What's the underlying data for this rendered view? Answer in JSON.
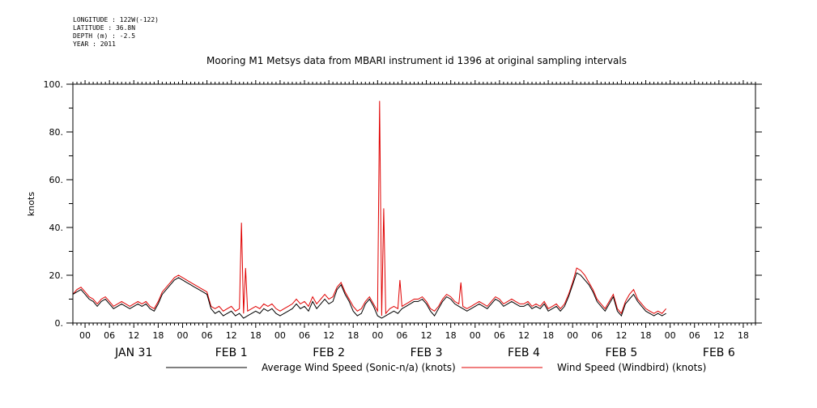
{
  "meta": {
    "longitude": "LONGITUDE : 122W(-122)",
    "latitude": "LATITUDE : 36.8N",
    "depth": "DEPTH (m) : -2.5",
    "year": "YEAR : 2011"
  },
  "chart_data": {
    "type": "line",
    "title": "Mooring M1 Metsys data from MBARI instrument id 1396 at original sampling intervals",
    "ylabel": "knots",
    "xlabel": "",
    "ylim": [
      0,
      100
    ],
    "y_ticks": [
      "0.",
      "20.",
      "40.",
      "60.",
      "80.",
      "100."
    ],
    "hour_labels": [
      "00",
      "06",
      "12",
      "18",
      "00",
      "06",
      "12",
      "18",
      "00",
      "06",
      "12",
      "18",
      "00",
      "06",
      "12",
      "18",
      "00",
      "06",
      "12",
      "18",
      "00",
      "06",
      "12",
      "18",
      "00",
      "06",
      "12",
      "18"
    ],
    "day_labels": [
      "JAN 31",
      "FEB  1",
      "FEB  2",
      "FEB  3",
      "FEB  4",
      "FEB  5",
      "FEB  6"
    ],
    "x_unit": "hours since 2011-01-30 21:00",
    "x_range": [
      0,
      168
    ],
    "series": [
      {
        "name": "Average Wind Speed (Sonic-n/a) (knots)",
        "color": "#000000",
        "points": [
          [
            0,
            12
          ],
          [
            1,
            13
          ],
          [
            2,
            14
          ],
          [
            3,
            12
          ],
          [
            4,
            10
          ],
          [
            5,
            9
          ],
          [
            6,
            7
          ],
          [
            7,
            9
          ],
          [
            8,
            10
          ],
          [
            9,
            8
          ],
          [
            10,
            6
          ],
          [
            11,
            7
          ],
          [
            12,
            8
          ],
          [
            13,
            7
          ],
          [
            14,
            6
          ],
          [
            15,
            7
          ],
          [
            16,
            8
          ],
          [
            17,
            7
          ],
          [
            18,
            8
          ],
          [
            19,
            6
          ],
          [
            20,
            5
          ],
          [
            21,
            8
          ],
          [
            22,
            12
          ],
          [
            23,
            14
          ],
          [
            24,
            16
          ],
          [
            25,
            18
          ],
          [
            26,
            19
          ],
          [
            27,
            18
          ],
          [
            28,
            17
          ],
          [
            29,
            16
          ],
          [
            30,
            15
          ],
          [
            31,
            14
          ],
          [
            32,
            13
          ],
          [
            33,
            12
          ],
          [
            34,
            6
          ],
          [
            35,
            4
          ],
          [
            36,
            5
          ],
          [
            37,
            3
          ],
          [
            38,
            4
          ],
          [
            39,
            5
          ],
          [
            40,
            3
          ],
          [
            41,
            4
          ],
          [
            42,
            2
          ],
          [
            43,
            3
          ],
          [
            44,
            4
          ],
          [
            45,
            5
          ],
          [
            46,
            4
          ],
          [
            47,
            6
          ],
          [
            48,
            5
          ],
          [
            49,
            6
          ],
          [
            50,
            4
          ],
          [
            51,
            3
          ],
          [
            52,
            4
          ],
          [
            53,
            5
          ],
          [
            54,
            6
          ],
          [
            55,
            8
          ],
          [
            56,
            6
          ],
          [
            57,
            7
          ],
          [
            58,
            5
          ],
          [
            59,
            9
          ],
          [
            60,
            6
          ],
          [
            61,
            8
          ],
          [
            62,
            10
          ],
          [
            63,
            8
          ],
          [
            64,
            9
          ],
          [
            65,
            14
          ],
          [
            66,
            16
          ],
          [
            67,
            12
          ],
          [
            68,
            9
          ],
          [
            69,
            5
          ],
          [
            70,
            3
          ],
          [
            71,
            4
          ],
          [
            72,
            8
          ],
          [
            73,
            10
          ],
          [
            74,
            7
          ],
          [
            75,
            3
          ],
          [
            76,
            2
          ],
          [
            77,
            3
          ],
          [
            78,
            4
          ],
          [
            79,
            5
          ],
          [
            80,
            4
          ],
          [
            81,
            6
          ],
          [
            82,
            7
          ],
          [
            83,
            8
          ],
          [
            84,
            9
          ],
          [
            85,
            9
          ],
          [
            86,
            10
          ],
          [
            87,
            8
          ],
          [
            88,
            5
          ],
          [
            89,
            3
          ],
          [
            90,
            6
          ],
          [
            91,
            9
          ],
          [
            92,
            11
          ],
          [
            93,
            10
          ],
          [
            94,
            8
          ],
          [
            95,
            7
          ],
          [
            96,
            6
          ],
          [
            97,
            5
          ],
          [
            98,
            6
          ],
          [
            99,
            7
          ],
          [
            100,
            8
          ],
          [
            101,
            7
          ],
          [
            102,
            6
          ],
          [
            103,
            8
          ],
          [
            104,
            10
          ],
          [
            105,
            9
          ],
          [
            106,
            7
          ],
          [
            107,
            8
          ],
          [
            108,
            9
          ],
          [
            109,
            8
          ],
          [
            110,
            7
          ],
          [
            111,
            7
          ],
          [
            112,
            8
          ],
          [
            113,
            6
          ],
          [
            114,
            7
          ],
          [
            115,
            6
          ],
          [
            116,
            8
          ],
          [
            117,
            5
          ],
          [
            118,
            6
          ],
          [
            119,
            7
          ],
          [
            120,
            5
          ],
          [
            121,
            7
          ],
          [
            122,
            11
          ],
          [
            123,
            16
          ],
          [
            124,
            21
          ],
          [
            125,
            20
          ],
          [
            126,
            18
          ],
          [
            127,
            16
          ],
          [
            128,
            13
          ],
          [
            129,
            9
          ],
          [
            130,
            7
          ],
          [
            131,
            5
          ],
          [
            132,
            8
          ],
          [
            133,
            11
          ],
          [
            134,
            5
          ],
          [
            135,
            3
          ],
          [
            136,
            8
          ],
          [
            137,
            10
          ],
          [
            138,
            12
          ],
          [
            139,
            9
          ],
          [
            140,
            7
          ],
          [
            141,
            5
          ],
          [
            142,
            4
          ],
          [
            143,
            3
          ],
          [
            144,
            4
          ],
          [
            145,
            3
          ],
          [
            146,
            4
          ]
        ]
      },
      {
        "name": "Wind Speed (Windbird) (knots)",
        "color": "#e00000",
        "points": [
          [
            0,
            12
          ],
          [
            1,
            14
          ],
          [
            2,
            15
          ],
          [
            3,
            13
          ],
          [
            4,
            11
          ],
          [
            5,
            10
          ],
          [
            6,
            8
          ],
          [
            7,
            10
          ],
          [
            8,
            11
          ],
          [
            9,
            9
          ],
          [
            10,
            7
          ],
          [
            11,
            8
          ],
          [
            12,
            9
          ],
          [
            13,
            8
          ],
          [
            14,
            7
          ],
          [
            15,
            8
          ],
          [
            16,
            9
          ],
          [
            17,
            8
          ],
          [
            18,
            9
          ],
          [
            19,
            7
          ],
          [
            20,
            6
          ],
          [
            21,
            9
          ],
          [
            22,
            13
          ],
          [
            23,
            15
          ],
          [
            24,
            17
          ],
          [
            25,
            19
          ],
          [
            26,
            20
          ],
          [
            27,
            19
          ],
          [
            28,
            18
          ],
          [
            29,
            17
          ],
          [
            30,
            16
          ],
          [
            31,
            15
          ],
          [
            32,
            14
          ],
          [
            33,
            13
          ],
          [
            34,
            7
          ],
          [
            35,
            6
          ],
          [
            36,
            7
          ],
          [
            37,
            5
          ],
          [
            38,
            6
          ],
          [
            39,
            7
          ],
          [
            40,
            5
          ],
          [
            41,
            6
          ],
          [
            41.5,
            42
          ],
          [
            42,
            4
          ],
          [
            42.5,
            23
          ],
          [
            43,
            5
          ],
          [
            44,
            6
          ],
          [
            45,
            7
          ],
          [
            46,
            6
          ],
          [
            47,
            8
          ],
          [
            48,
            7
          ],
          [
            49,
            8
          ],
          [
            50,
            6
          ],
          [
            51,
            5
          ],
          [
            52,
            6
          ],
          [
            53,
            7
          ],
          [
            54,
            8
          ],
          [
            55,
            10
          ],
          [
            56,
            8
          ],
          [
            57,
            9
          ],
          [
            58,
            7
          ],
          [
            59,
            11
          ],
          [
            60,
            8
          ],
          [
            61,
            10
          ],
          [
            62,
            12
          ],
          [
            63,
            10
          ],
          [
            64,
            11
          ],
          [
            65,
            15
          ],
          [
            66,
            17
          ],
          [
            67,
            13
          ],
          [
            68,
            10
          ],
          [
            69,
            7
          ],
          [
            70,
            5
          ],
          [
            71,
            6
          ],
          [
            72,
            9
          ],
          [
            73,
            11
          ],
          [
            74,
            8
          ],
          [
            75,
            5
          ],
          [
            75.5,
            93
          ],
          [
            76,
            3
          ],
          [
            76.5,
            48
          ],
          [
            77,
            4
          ],
          [
            78,
            6
          ],
          [
            79,
            7
          ],
          [
            80,
            6
          ],
          [
            80.5,
            18
          ],
          [
            81,
            7
          ],
          [
            82,
            8
          ],
          [
            83,
            9
          ],
          [
            84,
            10
          ],
          [
            85,
            10
          ],
          [
            86,
            11
          ],
          [
            87,
            9
          ],
          [
            88,
            6
          ],
          [
            89,
            5
          ],
          [
            90,
            7
          ],
          [
            91,
            10
          ],
          [
            92,
            12
          ],
          [
            93,
            11
          ],
          [
            94,
            9
          ],
          [
            95,
            8
          ],
          [
            95.5,
            17
          ],
          [
            96,
            7
          ],
          [
            97,
            6
          ],
          [
            98,
            7
          ],
          [
            99,
            8
          ],
          [
            100,
            9
          ],
          [
            101,
            8
          ],
          [
            102,
            7
          ],
          [
            103,
            9
          ],
          [
            104,
            11
          ],
          [
            105,
            10
          ],
          [
            106,
            8
          ],
          [
            107,
            9
          ],
          [
            108,
            10
          ],
          [
            109,
            9
          ],
          [
            110,
            8
          ],
          [
            111,
            8
          ],
          [
            112,
            9
          ],
          [
            113,
            7
          ],
          [
            114,
            8
          ],
          [
            115,
            7
          ],
          [
            116,
            9
          ],
          [
            117,
            6
          ],
          [
            118,
            7
          ],
          [
            119,
            8
          ],
          [
            120,
            6
          ],
          [
            121,
            8
          ],
          [
            122,
            12
          ],
          [
            123,
            17
          ],
          [
            124,
            23
          ],
          [
            125,
            22
          ],
          [
            126,
            20
          ],
          [
            127,
            17
          ],
          [
            128,
            14
          ],
          [
            129,
            10
          ],
          [
            130,
            8
          ],
          [
            131,
            6
          ],
          [
            132,
            9
          ],
          [
            133,
            12
          ],
          [
            134,
            6
          ],
          [
            135,
            4
          ],
          [
            136,
            9
          ],
          [
            137,
            12
          ],
          [
            138,
            14
          ],
          [
            139,
            10
          ],
          [
            140,
            8
          ],
          [
            141,
            6
          ],
          [
            142,
            5
          ],
          [
            143,
            4
          ],
          [
            144,
            5
          ],
          [
            145,
            4
          ],
          [
            146,
            6
          ]
        ]
      }
    ]
  }
}
